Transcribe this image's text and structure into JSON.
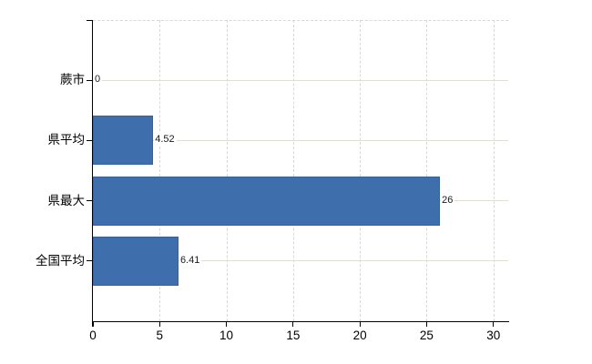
{
  "chart_data": {
    "type": "bar",
    "orientation": "horizontal",
    "title": "",
    "xlabel": "",
    "ylabel": "",
    "categories": [
      "蕨市",
      "県平均",
      "県最大",
      "全国平均"
    ],
    "values": [
      0,
      4.52,
      26,
      6.41
    ],
    "value_labels": [
      "0",
      "4.52",
      "26",
      "6.41"
    ],
    "x_ticks": [
      0,
      5,
      10,
      15,
      20,
      25,
      30
    ],
    "xlim": [
      0,
      30
    ],
    "legend": "none",
    "grid": {
      "vertical": "dashed",
      "horizontal": "solid",
      "top_border": "dashed"
    },
    "colors": {
      "bar": "#3e6fac",
      "bar_border": "#35629d",
      "axis": "#000000",
      "grid_vertical": "#d8d8d8",
      "grid_horizontal": "#dbe1d7",
      "text": "#000000",
      "value_text": "#1a1a1a",
      "background": "#ffffff"
    }
  }
}
